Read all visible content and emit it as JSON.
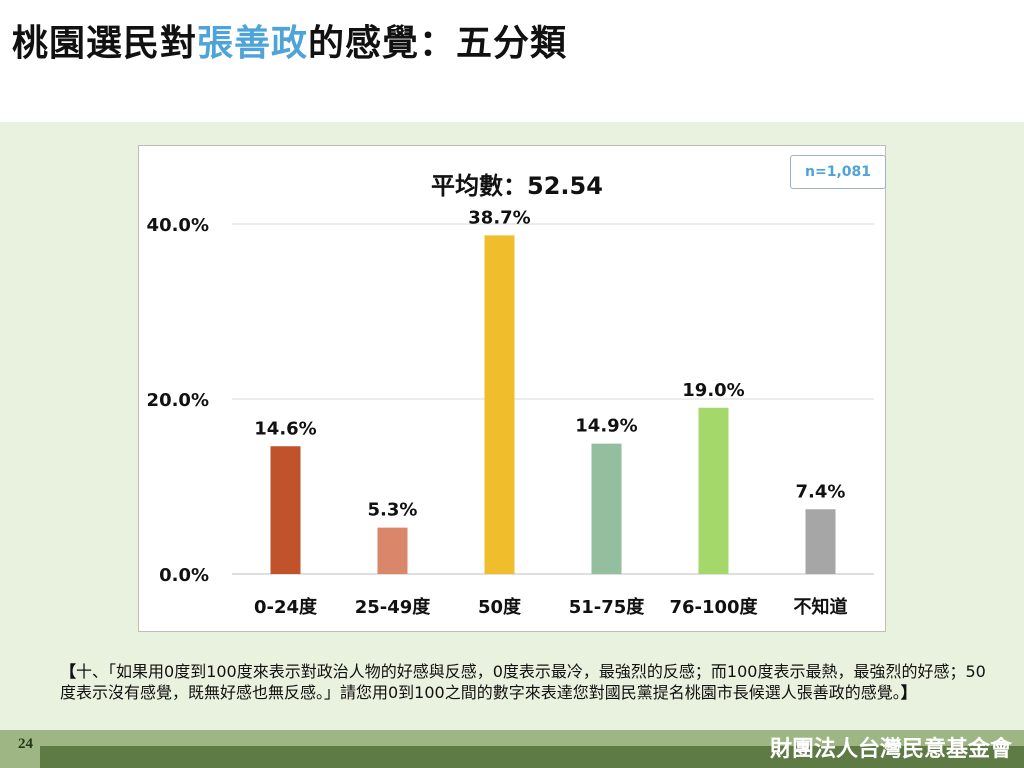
{
  "page": {
    "title_prefix": "桃園選民對",
    "title_highlight": "張善政",
    "title_suffix": "的感覺：五分類",
    "highlight_color": "#4ea3d9",
    "page_number": "24",
    "organization": "財團法人台灣民意基金會",
    "note_open": "【",
    "note_text": "十、「如果用0度到100度來表示對政治人物的好感與反感，0度表示最冷，最強烈的反感；而100度表示最熱，最強烈的好感；50度表示沒有感覺，既無好感也無反感。」請您用0到100之間的數字來表達您對國民黨提名桃園市長候選人張善政的感覺。",
    "note_close": "】"
  },
  "chart_data": {
    "type": "bar",
    "title": "平均數：52.54",
    "sample_size": "n=1,081",
    "categories": [
      "0-24度",
      "25-49度",
      "50度",
      "51-75度",
      "76-100度",
      "不知道"
    ],
    "values": [
      14.6,
      5.3,
      38.7,
      14.9,
      19.0,
      7.4
    ],
    "value_labels": [
      "14.6%",
      "5.3%",
      "38.7%",
      "14.9%",
      "19.0%",
      "7.4%"
    ],
    "colors": [
      "#c0532b",
      "#d9866a",
      "#f0bd2c",
      "#93bf9e",
      "#a5d86a",
      "#a6a6a6"
    ],
    "ylim": [
      0,
      40
    ],
    "yticks": [
      0,
      20,
      40
    ],
    "ytick_labels": [
      "0.0%",
      "20.0%",
      "40.0%"
    ],
    "grid": true,
    "legend": "none"
  }
}
